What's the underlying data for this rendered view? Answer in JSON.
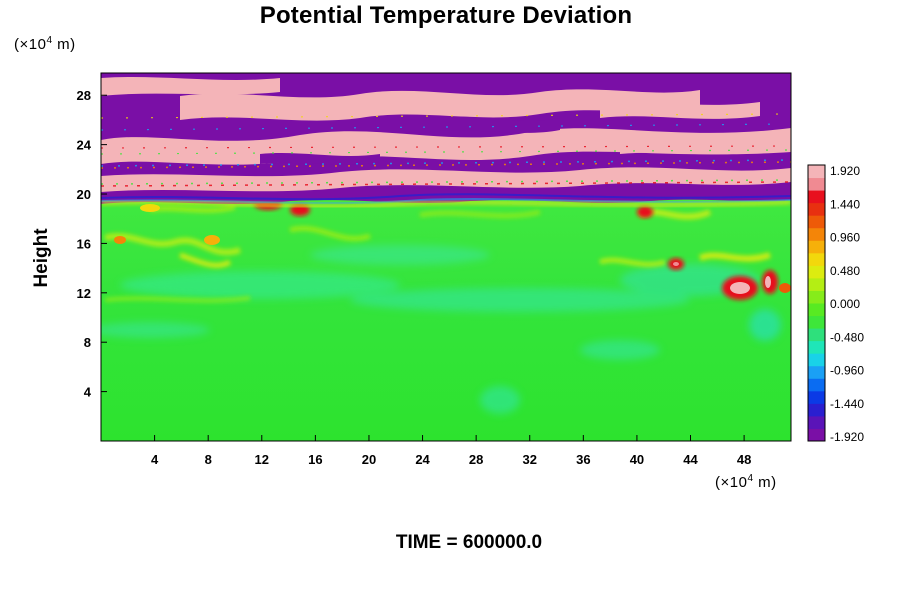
{
  "chart_data": {
    "type": "heatmap",
    "title": "Potential Temperature Deviation",
    "ylabel": "Height",
    "x_unit": {
      "prefix": "(×10",
      "exp": "4",
      "suffix": " m)"
    },
    "y_unit": {
      "prefix": "(×10",
      "exp": "4",
      "suffix": " m)"
    },
    "xlim": [
      0,
      51.5
    ],
    "ylim": [
      0,
      29.8
    ],
    "x_ticks": [
      "4",
      "8",
      "12",
      "16",
      "20",
      "24",
      "28",
      "32",
      "36",
      "40",
      "44",
      "48"
    ],
    "y_ticks": [
      "4",
      "8",
      "12",
      "16",
      "20",
      "24",
      "28"
    ],
    "colorbar": {
      "min": -1.92,
      "max": 1.92,
      "labels": [
        "1.920",
        "1.440",
        "0.960",
        "0.480",
        "0.000",
        "-0.480",
        "-0.960",
        "-1.440",
        "-1.920"
      ],
      "colors": [
        "#7a0fa6",
        "#5a14b8",
        "#2a1fd0",
        "#0b3ae6",
        "#0a6cf2",
        "#1aa0f5",
        "#19d2e8",
        "#1fe6b8",
        "#2ee07c",
        "#3ee63a",
        "#58ea22",
        "#86ec1a",
        "#b4ee14",
        "#dcec10",
        "#f2d80c",
        "#f6b00a",
        "#f48508",
        "#ee5a08",
        "#e83010",
        "#e8101e",
        "#f08a92",
        "#f4b4b8"
      ]
    },
    "annotation": "TIME = 600000.0",
    "description_regions": {
      "background_value": 0.05,
      "upper_layer_value_pattern": "alternating bands near -1.92 and +1.92 above height 19.5"
    },
    "grid": false
  }
}
